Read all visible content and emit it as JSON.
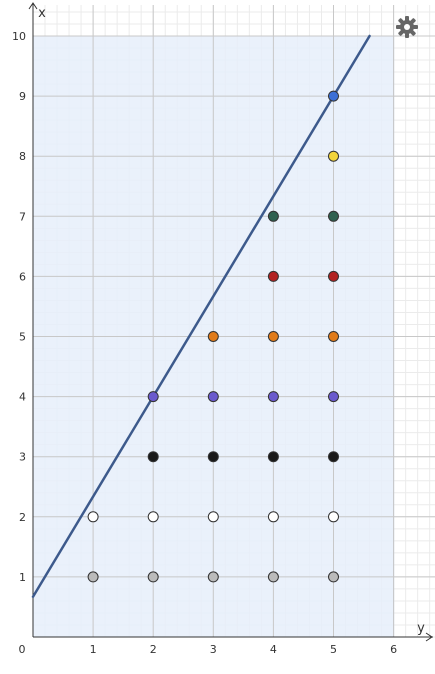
{
  "chart_data": {
    "type": "scatter",
    "x_label": "y",
    "y_label": "x",
    "xlim": [
      0,
      6.7
    ],
    "ylim": [
      0,
      10.6
    ],
    "x_ticks": [
      "0",
      "1",
      "2",
      "3",
      "4",
      "5",
      "6"
    ],
    "y_ticks": [
      "1",
      "2",
      "3",
      "4",
      "5",
      "6",
      "7",
      "8",
      "9",
      "10"
    ],
    "grid": true,
    "shaded_region": {
      "x_from": 0,
      "x_to": 6,
      "y_from": 0,
      "y_to": 10,
      "color": "#e6eefa"
    },
    "line": {
      "points": [
        [
          0,
          0.67
        ],
        [
          5.6,
          10
        ]
      ],
      "color": "#3d5a8c"
    },
    "points": [
      {
        "x": 1,
        "y": 1,
        "color": "#bbbbbb"
      },
      {
        "x": 2,
        "y": 1,
        "color": "#bbbbbb"
      },
      {
        "x": 3,
        "y": 1,
        "color": "#bbbbbb"
      },
      {
        "x": 4,
        "y": 1,
        "color": "#bbbbbb"
      },
      {
        "x": 5,
        "y": 1,
        "color": "#bbbbbb"
      },
      {
        "x": 1,
        "y": 2,
        "color": "#ffffff"
      },
      {
        "x": 2,
        "y": 2,
        "color": "#ffffff"
      },
      {
        "x": 3,
        "y": 2,
        "color": "#ffffff"
      },
      {
        "x": 4,
        "y": 2,
        "color": "#ffffff"
      },
      {
        "x": 5,
        "y": 2,
        "color": "#ffffff"
      },
      {
        "x": 2,
        "y": 3,
        "color": "#1a1a1a"
      },
      {
        "x": 3,
        "y": 3,
        "color": "#1a1a1a"
      },
      {
        "x": 4,
        "y": 3,
        "color": "#1a1a1a"
      },
      {
        "x": 5,
        "y": 3,
        "color": "#1a1a1a"
      },
      {
        "x": 2,
        "y": 4,
        "color": "#6a5acd"
      },
      {
        "x": 3,
        "y": 4,
        "color": "#6a5acd"
      },
      {
        "x": 4,
        "y": 4,
        "color": "#6a5acd"
      },
      {
        "x": 5,
        "y": 4,
        "color": "#6a5acd"
      },
      {
        "x": 3,
        "y": 5,
        "color": "#e07b1a"
      },
      {
        "x": 4,
        "y": 5,
        "color": "#e07b1a"
      },
      {
        "x": 5,
        "y": 5,
        "color": "#e07b1a"
      },
      {
        "x": 4,
        "y": 6,
        "color": "#b22222"
      },
      {
        "x": 5,
        "y": 6,
        "color": "#b22222"
      },
      {
        "x": 4,
        "y": 7,
        "color": "#2f6150"
      },
      {
        "x": 5,
        "y": 7,
        "color": "#2f6150"
      },
      {
        "x": 5,
        "y": 8,
        "color": "#f2d43a"
      },
      {
        "x": 5,
        "y": 9,
        "color": "#3b6fd6"
      }
    ]
  },
  "settings": {
    "icon": "gear-icon"
  }
}
